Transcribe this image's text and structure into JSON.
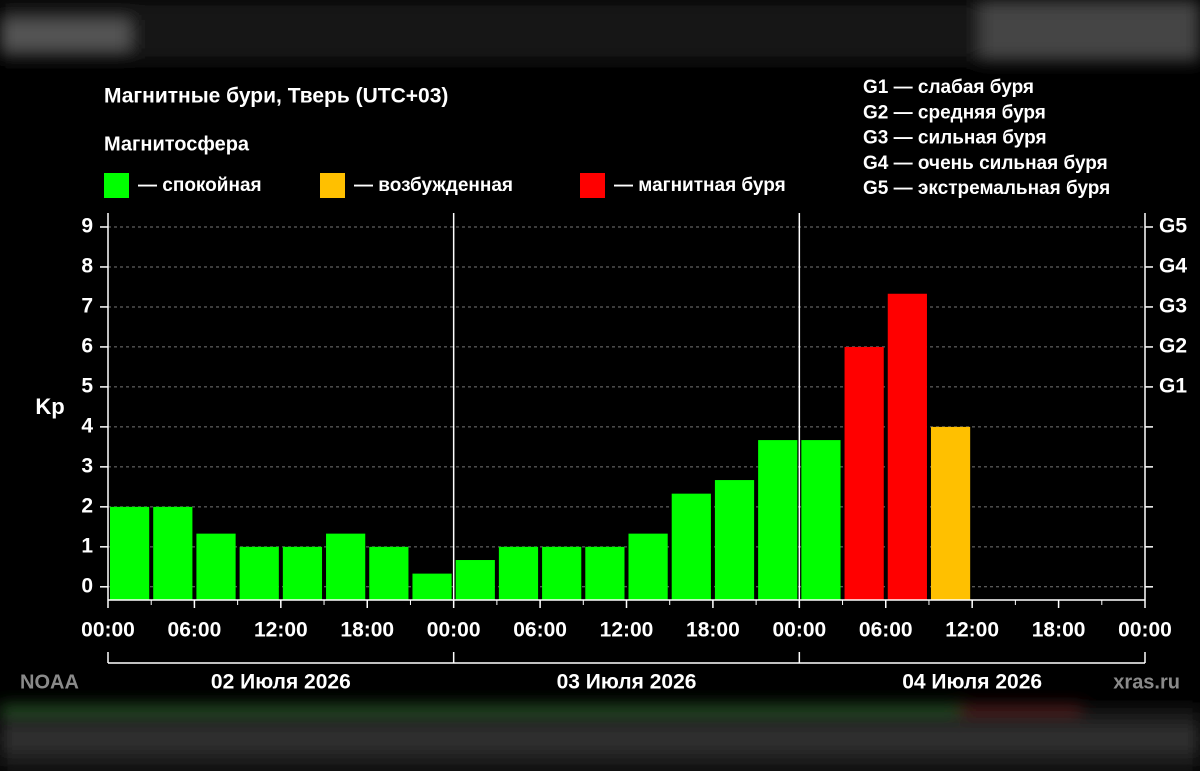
{
  "chart_data": {
    "type": "bar",
    "title": "Магнитные бури, Тверь (UTC+03)",
    "subtitle": "Магнитосфера",
    "legend": [
      {
        "label": "— спокойная",
        "color": "#00ff00"
      },
      {
        "label": "— возбужденная",
        "color": "#ffc000"
      },
      {
        "label": "— магнитная буря",
        "color": "#ff0000"
      }
    ],
    "scale_notes": [
      "G1 — слабая буря",
      "G2 — средняя буря",
      "G3 — сильная буря",
      "G4 — очень сильная буря",
      "G5 — экстремальная буря"
    ],
    "ylabel": "Kp",
    "x": [
      0,
      3,
      6,
      9,
      12,
      15,
      18,
      21,
      24,
      27,
      30,
      33,
      36,
      39,
      42,
      45,
      48,
      51,
      54,
      57,
      60,
      63,
      66,
      69
    ],
    "bar_width": 3,
    "values": [
      2,
      2,
      1.33,
      1,
      1,
      1.33,
      1,
      0.33,
      0.67,
      1,
      1,
      1,
      1.33,
      2.33,
      2.67,
      3.67,
      3.67,
      6,
      7.33,
      4,
      null,
      null,
      null,
      null
    ],
    "colors": [
      "#00ff00",
      "#00ff00",
      "#00ff00",
      "#00ff00",
      "#00ff00",
      "#00ff00",
      "#00ff00",
      "#00ff00",
      "#00ff00",
      "#00ff00",
      "#00ff00",
      "#00ff00",
      "#00ff00",
      "#00ff00",
      "#00ff00",
      "#00ff00",
      "#00ff00",
      "#ff0000",
      "#ff0000",
      "#ffc000",
      null,
      null,
      null,
      null
    ],
    "xlim": [
      0,
      72
    ],
    "xticks": [
      {
        "value": 0,
        "label": "00:00"
      },
      {
        "value": 6,
        "label": "06:00"
      },
      {
        "value": 12,
        "label": "12:00"
      },
      {
        "value": 18,
        "label": "18:00"
      },
      {
        "value": 24,
        "label": "00:00"
      },
      {
        "value": 30,
        "label": "06:00"
      },
      {
        "value": 36,
        "label": "12:00"
      },
      {
        "value": 42,
        "label": "18:00"
      },
      {
        "value": 48,
        "label": "00:00"
      },
      {
        "value": 54,
        "label": "06:00"
      },
      {
        "value": 60,
        "label": "12:00"
      },
      {
        "value": 66,
        "label": "18:00"
      },
      {
        "value": 72,
        "label": "00:00"
      }
    ],
    "day_length": 24,
    "day_labels": [
      "02 Июля 2026",
      "03 Июля 2026",
      "04 Июля 2026"
    ],
    "ylim": [
      -0.33,
      9.35
    ],
    "yticks": [
      0,
      1,
      2,
      3,
      4,
      5,
      6,
      7,
      8,
      9
    ],
    "y2lim": [
      -0.33,
      9.35
    ],
    "y2ticks": [
      {
        "value": 5,
        "label": "G1"
      },
      {
        "value": 6,
        "label": "G2"
      },
      {
        "value": 7,
        "label": "G3"
      },
      {
        "value": 8,
        "label": "G4"
      },
      {
        "value": 9,
        "label": "G5"
      }
    ],
    "grid": true,
    "source": "NOAA",
    "credit": "xras.ru"
  }
}
